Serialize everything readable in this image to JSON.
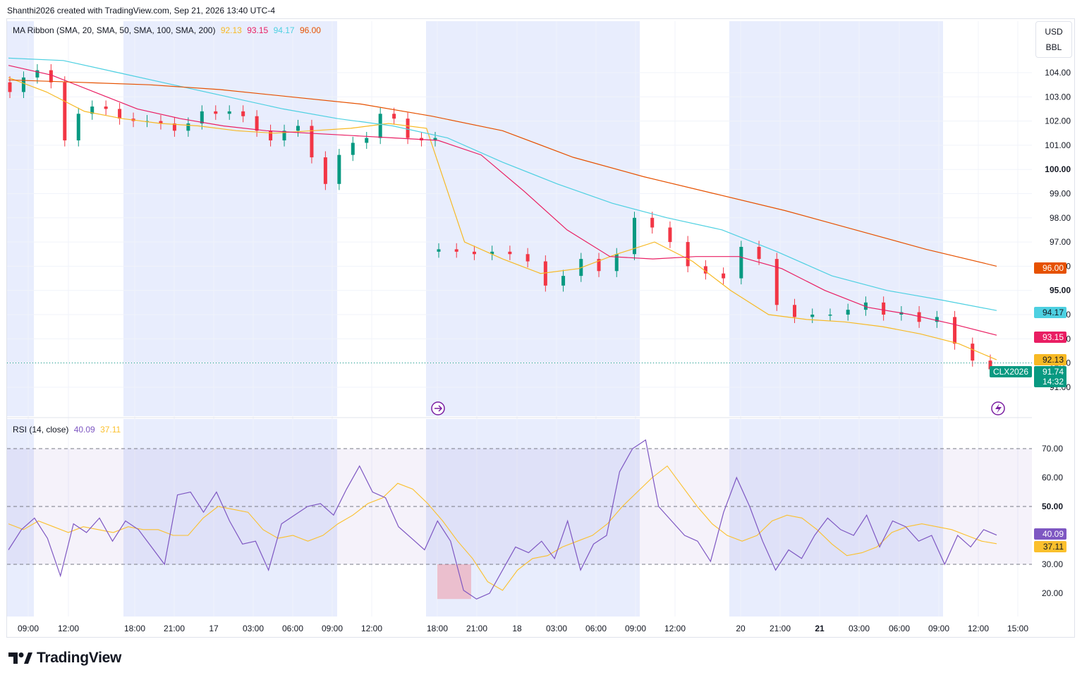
{
  "caption": "Shanthi2026 created with TradingView.com, Sep 21, 2026 13:40 UTC-4",
  "brand": "TradingView",
  "units": {
    "currency": "USD",
    "unit": "BBL"
  },
  "indicators": {
    "ma_ribbon": {
      "label": "MA Ribbon (SMA, 20, SMA, 50, SMA, 100, SMA, 200)",
      "values": [
        "92.13",
        "93.15",
        "94.17",
        "96.00"
      ]
    },
    "rsi": {
      "label": "RSI (14, close)",
      "values": [
        "40.09",
        "37.11"
      ]
    }
  },
  "colors": {
    "up": "#089981",
    "down": "#f23645",
    "sma20": "#f7b924",
    "sma50": "#e91e63",
    "sma100": "#4dd0e1",
    "sma200": "#e65100",
    "rsi": "#7e57c2",
    "rsi_ma": "#fbc02d",
    "session": "#e8edfd"
  },
  "price_axis": {
    "ticks": [
      "104.00",
      "103.00",
      "102.00",
      "101.00",
      "100.00",
      "99.00",
      "98.00",
      "97.00",
      "96.00",
      "95.00",
      "94.00",
      "93.00",
      "92.00",
      "91.00"
    ]
  },
  "rsi_axis": {
    "ticks": [
      "70.00",
      "60.00",
      "50.00",
      "40.00",
      "30.00",
      "20.00"
    ]
  },
  "time_axis": {
    "ticks": [
      "09:00",
      "12:00",
      "18:00",
      "21:00",
      "17",
      "03:00",
      "06:00",
      "09:00",
      "12:00",
      "18:00",
      "21:00",
      "18",
      "03:00",
      "06:00",
      "09:00",
      "12:00",
      "20",
      "21:00",
      "21",
      "03:00",
      "06:00",
      "09:00",
      "12:00",
      "15:00"
    ]
  },
  "price_labels": {
    "sma200": "96.00",
    "sma100": "94.17",
    "sma50": "93.15",
    "sma20": "92.13",
    "symbol": "CLX2026",
    "last": "91.74",
    "countdown": "14:32"
  },
  "chart_data": [
    {
      "type": "candlestick",
      "title": "",
      "ylim": [
        90.8,
        105.2
      ],
      "last_price": 91.74,
      "close_series": [
        103.2,
        103.8,
        104.1,
        103.6,
        101.2,
        102.3,
        102.6,
        102.5,
        102.1,
        102.0,
        102.0,
        101.9,
        101.6,
        101.9,
        102.4,
        102.3,
        102.4,
        102.2,
        101.6,
        101.2,
        101.6,
        101.8,
        100.5,
        99.4,
        100.6,
        101.1,
        101.3,
        102.3,
        102.1,
        101.3,
        101.2,
        101.3
      ],
      "gap_close_series": [
        96.7,
        96.6,
        96.5,
        96.6,
        96.5,
        96.2,
        95.2,
        95.6,
        96.3,
        95.8,
        96.5,
        98.0,
        97.6,
        97.0,
        96.0,
        95.7,
        95.5,
        96.8,
        96.3,
        94.4,
        93.9,
        94.0,
        94.0,
        94.2,
        94.5,
        94.0,
        94.1,
        93.7,
        93.9,
        92.8,
        92.1,
        91.74
      ],
      "series": [
        {
          "name": "SMA 20",
          "values": [
            103.8,
            103.2,
            102.4,
            102.1,
            101.9,
            101.8,
            101.6,
            101.5,
            101.6,
            101.7,
            101.9,
            101.7,
            97.0,
            96.3,
            95.7,
            95.9,
            96.5,
            97.0,
            96.2,
            95.0,
            94.0,
            93.8,
            93.7,
            93.5,
            93.2,
            92.8,
            92.13
          ]
        },
        {
          "name": "SMA 50",
          "values": [
            104.3,
            103.9,
            103.2,
            102.5,
            102.1,
            101.8,
            101.6,
            101.5,
            101.4,
            101.3,
            101.2,
            100.6,
            99.1,
            97.5,
            96.4,
            96.3,
            96.4,
            96.4,
            95.9,
            95.0,
            94.3,
            94.0,
            93.6,
            93.15
          ]
        },
        {
          "name": "SMA 100",
          "values": [
            104.6,
            104.5,
            104.0,
            103.5,
            103.0,
            102.5,
            102.1,
            101.8,
            101.3,
            100.3,
            99.4,
            98.6,
            98.0,
            97.5,
            96.6,
            95.6,
            95.0,
            94.6,
            94.17
          ]
        },
        {
          "name": "SMA 200",
          "values": [
            103.7,
            103.6,
            103.5,
            103.3,
            103.0,
            102.7,
            102.2,
            101.6,
            100.5,
            99.7,
            99.0,
            98.3,
            97.5,
            96.7,
            96.0
          ]
        }
      ]
    },
    {
      "type": "line",
      "title": "",
      "ylim": [
        15,
        75
      ],
      "series": [
        {
          "name": "RSI",
          "values": [
            35,
            42,
            46,
            39,
            26,
            44,
            41,
            46,
            38,
            45,
            42,
            36,
            30,
            54,
            55,
            48,
            55,
            45,
            37,
            38,
            28,
            44,
            47,
            50,
            51,
            47,
            56,
            64,
            55,
            53,
            43,
            39,
            35,
            45,
            38,
            21,
            18,
            20,
            28,
            36,
            34,
            38,
            32,
            45,
            28,
            37,
            40,
            62,
            70,
            73,
            50,
            45,
            40,
            38,
            31,
            48,
            60,
            50,
            38,
            28,
            35,
            32,
            40,
            46,
            42,
            40,
            47,
            36,
            45,
            43,
            38,
            40,
            30,
            40,
            36,
            42,
            40.09
          ]
        },
        {
          "name": "RSI-based MA",
          "values": [
            44,
            42,
            45,
            43,
            41,
            43,
            42,
            41,
            43,
            42,
            42,
            40,
            40,
            46,
            50,
            49,
            48,
            42,
            39,
            40,
            38,
            40,
            44,
            47,
            51,
            53,
            58,
            56,
            51,
            45,
            38,
            32,
            24,
            21,
            28,
            32,
            33,
            36,
            38,
            40,
            44,
            50,
            55,
            60,
            64,
            57,
            50,
            44,
            40,
            38,
            40,
            45,
            47,
            46,
            42,
            37,
            33,
            34,
            36,
            41,
            43,
            44,
            43,
            42,
            40,
            38,
            37.11
          ]
        }
      ],
      "levels": [
        70,
        50,
        30
      ]
    }
  ]
}
